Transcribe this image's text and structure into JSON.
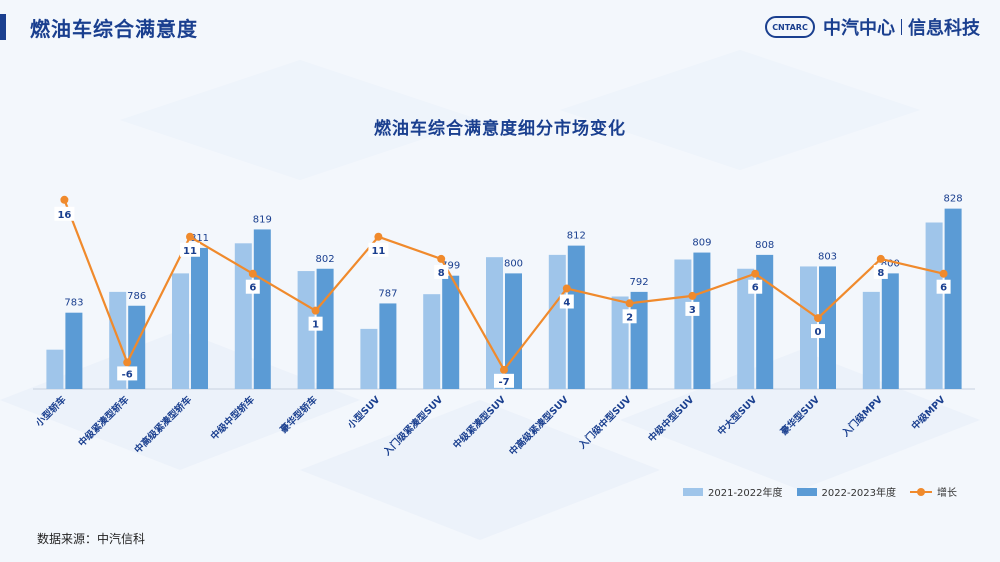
{
  "header": {
    "title": "燃油车综合满意度",
    "brand_logo": "CNTARC",
    "brand_name": "中汽中心",
    "brand_sub": "信息科技"
  },
  "source": "数据来源：中汽信科",
  "colors": {
    "bar2122": "#9fc5ea",
    "bar2223": "#5b9bd5",
    "growth": "#f08a2c",
    "label": "#1a3f8f"
  },
  "chart_data": {
    "type": "bar",
    "title": "燃油车综合满意度细分市场变化",
    "categories": [
      "小型轿车",
      "中级紧凑型轿车",
      "中高级紧凑型轿车",
      "中级中型轿车",
      "豪华型轿车",
      "小型SUV",
      "入门级紧凑型SUV",
      "中级紧凑型SUV",
      "中高级紧凑型SUV",
      "入门级中型SUV",
      "中级中型SUV",
      "中大型SUV",
      "豪华型SUV",
      "入门级MPV",
      "中级MPV"
    ],
    "series": [
      {
        "name": "2021-2022年度",
        "values": [
          767,
          792,
          800,
          813,
          801,
          776,
          791,
          807,
          808,
          790,
          806,
          802,
          803,
          792,
          822
        ]
      },
      {
        "name": "2022-2023年度",
        "values": [
          783,
          786,
          811,
          819,
          802,
          787,
          799,
          800,
          812,
          792,
          809,
          808,
          803,
          800,
          828
        ]
      },
      {
        "name": "增长",
        "values": [
          16,
          -6,
          11,
          6,
          1,
          11,
          8,
          -7,
          4,
          2,
          3,
          6,
          0,
          8,
          6
        ]
      }
    ],
    "data_labels": [
      "783",
      "786",
      "811",
      "819",
      "802",
      "787",
      "799",
      "800",
      "812",
      "792",
      "809",
      "808",
      "803",
      "800",
      "828"
    ],
    "growth_labels": [
      "16",
      "-6",
      "11",
      "6",
      "1",
      "11",
      "8",
      "-7",
      "4",
      "2",
      "3",
      "6",
      "0",
      "8",
      "6"
    ],
    "legend_position": "bottom-right"
  }
}
